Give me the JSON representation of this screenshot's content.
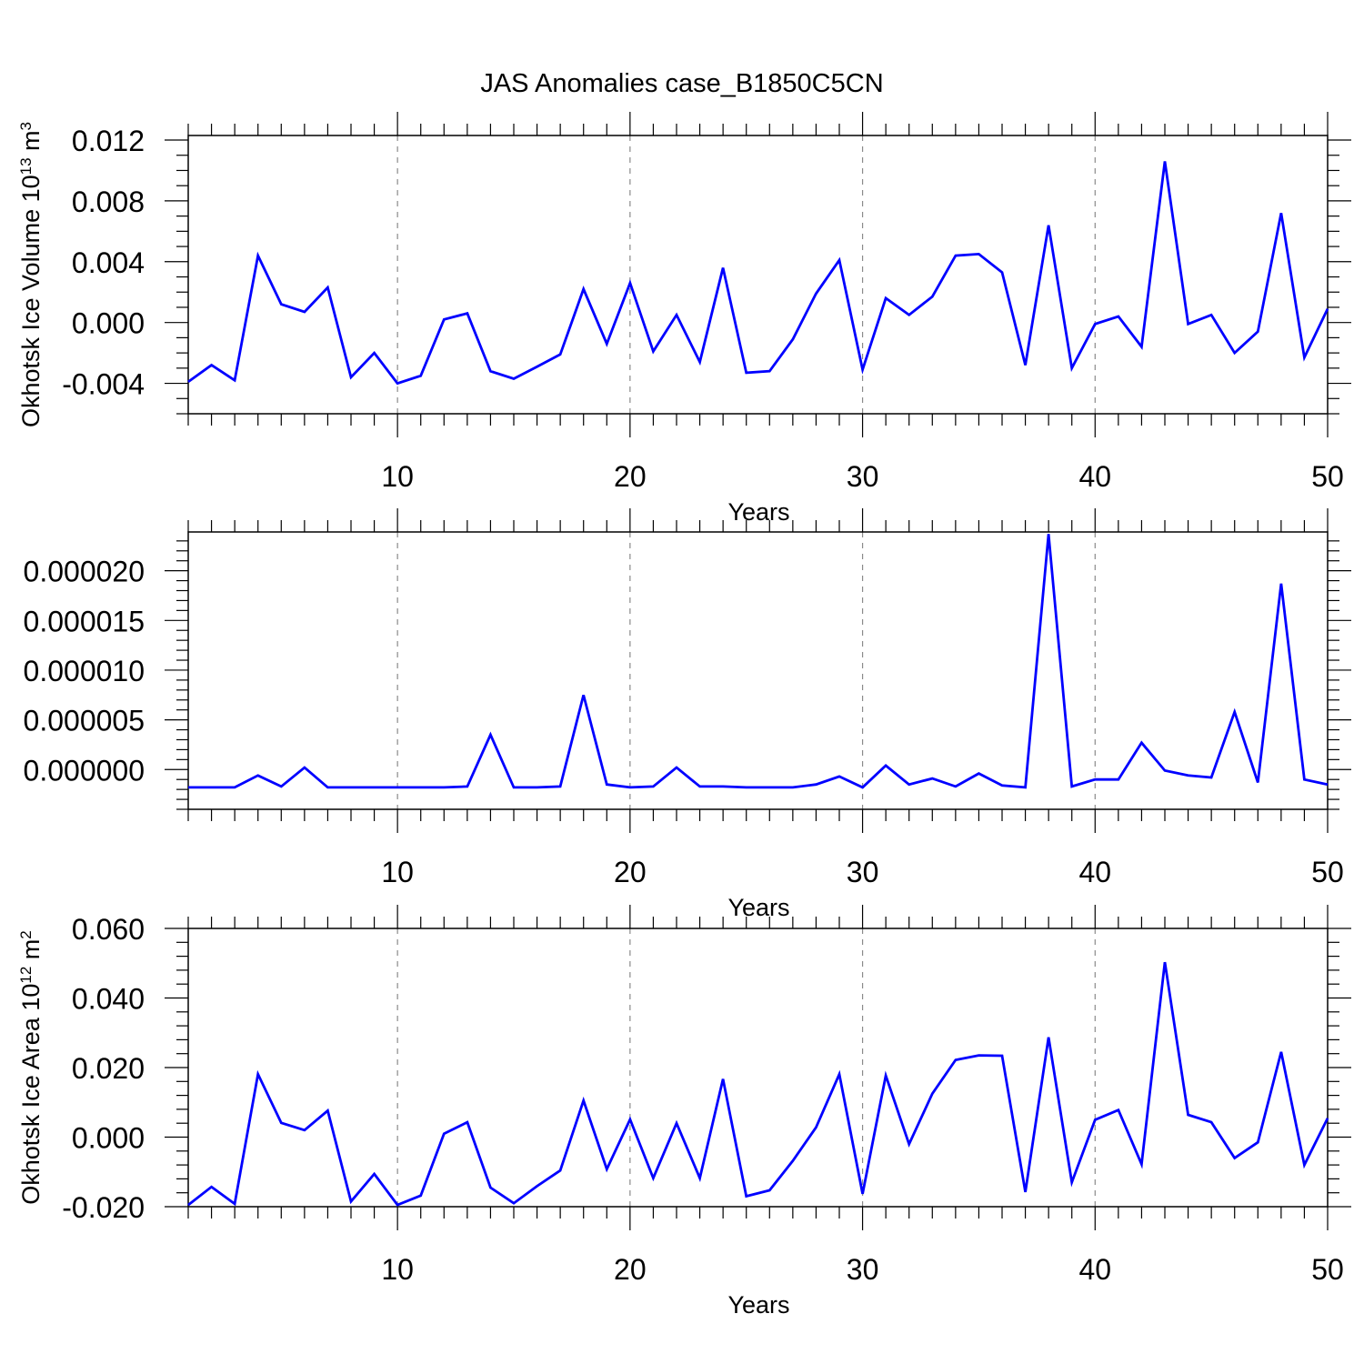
{
  "figure": {
    "title": "JAS Anomalies case_B1850C5CN"
  },
  "chart_data": [
    {
      "type": "line",
      "xlabel": "Years",
      "ylabel": "Okhotsk Ice Volume 10",
      "ylabel_exp": "13",
      "ylabel_unit": " m",
      "ylabel_unit_exp": "3",
      "xlim": [
        1,
        50
      ],
      "ylim": [
        -0.006,
        0.0123
      ],
      "xticks": [
        10,
        20,
        30,
        40,
        50
      ],
      "xtick_labels": [
        "10",
        "20",
        "30",
        "40",
        "50"
      ],
      "yticks": [
        -0.004,
        0.0,
        0.004,
        0.008,
        0.012
      ],
      "ytick_labels": [
        "-0.004",
        "0.000",
        "0.004",
        "0.008",
        "0.012"
      ],
      "ymajor_step": 0.004,
      "yminor_step": 0.001,
      "grid": "vertical dashed lines at major x ticks",
      "color": "#0000ff",
      "x": [
        1,
        2,
        3,
        4,
        5,
        6,
        7,
        8,
        9,
        10,
        11,
        12,
        13,
        14,
        15,
        16,
        17,
        18,
        19,
        20,
        21,
        22,
        23,
        24,
        25,
        26,
        27,
        28,
        29,
        30,
        31,
        32,
        33,
        34,
        35,
        36,
        37,
        38,
        39,
        40,
        41,
        42,
        43,
        44,
        45,
        46,
        47,
        48,
        49,
        50
      ],
      "y": [
        -0.0039,
        -0.0028,
        -0.0038,
        0.0044,
        0.0012,
        0.0007,
        0.0023,
        -0.0036,
        -0.002,
        -0.004,
        -0.0035,
        0.0002,
        0.0006,
        -0.0032,
        -0.0037,
        -0.0029,
        -0.0021,
        0.0022,
        -0.0014,
        0.0026,
        -0.0019,
        0.0005,
        -0.0026,
        0.0036,
        -0.0033,
        -0.0032,
        -0.0011,
        0.0019,
        0.0041,
        -0.0031,
        0.0016,
        0.0005,
        0.0017,
        0.0044,
        0.0045,
        0.0033,
        -0.0028,
        0.0064,
        -0.003,
        -0.0001,
        0.0004,
        -0.0016,
        0.0106,
        -0.0001,
        0.0005,
        -0.002,
        -0.0006,
        0.0072,
        -0.0023,
        0.0009
      ]
    },
    {
      "type": "line",
      "xlabel": "Years",
      "ylabel": "",
      "xlim": [
        1,
        50
      ],
      "ylim": [
        -4e-06,
        2.39e-05
      ],
      "xticks": [
        10,
        20,
        30,
        40,
        50
      ],
      "xtick_labels": [
        "10",
        "20",
        "30",
        "40",
        "50"
      ],
      "yticks": [
        0.0,
        5e-06,
        1e-05,
        1.5e-05,
        2e-05
      ],
      "ytick_labels": [
        "0.000000",
        "0.000005",
        "0.000010",
        "0.000015",
        "0.000020"
      ],
      "ymajor_step": 5e-06,
      "yminor_step": 1e-06,
      "grid": "vertical dashed lines at major x ticks",
      "color": "#0000ff",
      "x": [
        1,
        2,
        3,
        4,
        5,
        6,
        7,
        8,
        9,
        10,
        11,
        12,
        13,
        14,
        15,
        16,
        17,
        18,
        19,
        20,
        21,
        22,
        23,
        24,
        25,
        26,
        27,
        28,
        29,
        30,
        31,
        32,
        33,
        34,
        35,
        36,
        37,
        38,
        39,
        40,
        41,
        42,
        43,
        44,
        45,
        46,
        47,
        48,
        49,
        50
      ],
      "y": [
        -1.8e-06,
        -1.8e-06,
        -1.8e-06,
        -6e-07,
        -1.7e-06,
        2e-07,
        -1.8e-06,
        -1.8e-06,
        -1.8e-06,
        -1.8e-06,
        -1.8e-06,
        -1.8e-06,
        -1.7e-06,
        3.5e-06,
        -1.8e-06,
        -1.8e-06,
        -1.7e-06,
        7.5e-06,
        -1.5e-06,
        -1.8e-06,
        -1.7e-06,
        2e-07,
        -1.7e-06,
        -1.7e-06,
        -1.8e-06,
        -1.8e-06,
        -1.8e-06,
        -1.5e-06,
        -7e-07,
        -1.8e-06,
        4e-07,
        -1.5e-06,
        -9e-07,
        -1.7e-06,
        -4e-07,
        -1.6e-06,
        -1.8e-06,
        2.37e-05,
        -1.7e-06,
        -1e-06,
        -1e-06,
        2.7e-06,
        -1e-07,
        -6e-07,
        -8e-07,
        5.8e-06,
        -1.3e-06,
        1.87e-05,
        -1e-06,
        -1.5e-06
      ]
    },
    {
      "type": "line",
      "xlabel": "Years",
      "ylabel": "Okhotsk Ice Area 10",
      "ylabel_exp": "12",
      "ylabel_unit": " m",
      "ylabel_unit_exp": "2",
      "xlim": [
        1,
        50
      ],
      "ylim": [
        -0.02,
        0.06
      ],
      "xticks": [
        10,
        20,
        30,
        40,
        50
      ],
      "xtick_labels": [
        "10",
        "20",
        "30",
        "40",
        "50"
      ],
      "yticks": [
        -0.02,
        0.0,
        0.02,
        0.04,
        0.06
      ],
      "ytick_labels": [
        "-0.020",
        "0.000",
        "0.020",
        "0.040",
        "0.060"
      ],
      "ymajor_step": 0.02,
      "yminor_step": 0.004,
      "grid": "vertical dashed lines at major x ticks",
      "color": "#0000ff",
      "x": [
        1,
        2,
        3,
        4,
        5,
        6,
        7,
        8,
        9,
        10,
        11,
        12,
        13,
        14,
        15,
        16,
        17,
        18,
        19,
        20,
        21,
        22,
        23,
        24,
        25,
        26,
        27,
        28,
        29,
        30,
        31,
        32,
        33,
        34,
        35,
        36,
        37,
        38,
        39,
        40,
        41,
        42,
        43,
        44,
        45,
        46,
        47,
        48,
        49,
        50
      ],
      "y": [
        -0.0195,
        -0.0143,
        -0.0192,
        0.0181,
        0.0041,
        0.002,
        0.0076,
        -0.0185,
        -0.0106,
        -0.0195,
        -0.0168,
        0.001,
        0.0043,
        -0.0145,
        -0.019,
        -0.0141,
        -0.0096,
        0.0105,
        -0.0092,
        0.0051,
        -0.0118,
        0.004,
        -0.0118,
        0.0167,
        -0.017,
        -0.0153,
        -0.0068,
        0.0028,
        0.0181,
        -0.0163,
        0.0177,
        -0.002,
        0.0125,
        0.0222,
        0.0235,
        0.0234,
        -0.0158,
        0.0287,
        -0.013,
        0.005,
        0.0078,
        -0.0078,
        0.0503,
        0.0064,
        0.0043,
        -0.006,
        -0.0015,
        0.0245,
        -0.008,
        0.0054
      ]
    }
  ]
}
